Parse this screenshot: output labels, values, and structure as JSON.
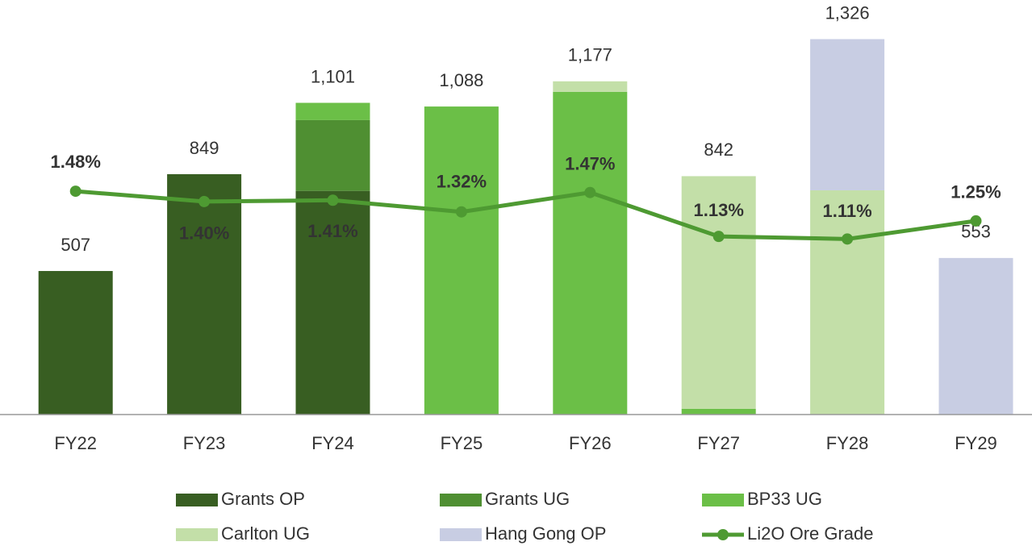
{
  "chart_data": {
    "type": "bar",
    "stacked": true,
    "categories": [
      "FY22",
      "FY23",
      "FY24",
      "FY25",
      "FY26",
      "FY27",
      "FY28",
      "FY29"
    ],
    "series": [
      {
        "name": "Grants OP",
        "color": "#385e22",
        "values": [
          507,
          849,
          790,
          0,
          0,
          0,
          0,
          0
        ]
      },
      {
        "name": "Grants UG",
        "color": "#4f8f32",
        "values": [
          0,
          0,
          250,
          0,
          0,
          0,
          0,
          0
        ]
      },
      {
        "name": "BP33 UG",
        "color": "#6bbf47",
        "values": [
          0,
          0,
          61,
          1088,
          1140,
          20,
          0,
          0
        ]
      },
      {
        "name": "Carlton UG",
        "color": "#c3dfa8",
        "values": [
          0,
          0,
          0,
          0,
          37,
          822,
          792,
          0
        ]
      },
      {
        "name": "Hang Gong OP",
        "color": "#c8cde3",
        "values": [
          0,
          0,
          0,
          0,
          0,
          0,
          534,
          553
        ]
      },
      {
        "name": "Li2O Ore Grade",
        "color": "#4e9a32",
        "type": "line",
        "axis": "y2",
        "values": [
          1.48,
          1.4,
          1.41,
          1.32,
          1.47,
          1.13,
          1.11,
          1.25
        ],
        "value_labels": [
          "1.48%",
          "1.40%",
          "1.41%",
          "1.32%",
          "1.47%",
          "1.13%",
          "1.11%",
          "1.25%"
        ]
      }
    ],
    "totals": {
      "values": [
        507,
        849,
        1101,
        1088,
        1177,
        842,
        1326,
        553
      ],
      "value_labels": [
        "507",
        "849",
        "1,101",
        "1,088",
        "1,177",
        "842",
        "1,326",
        "553"
      ]
    },
    "ylim": [
      0,
      1450
    ],
    "y2lim": [
      -0.25,
      2.93
    ]
  }
}
